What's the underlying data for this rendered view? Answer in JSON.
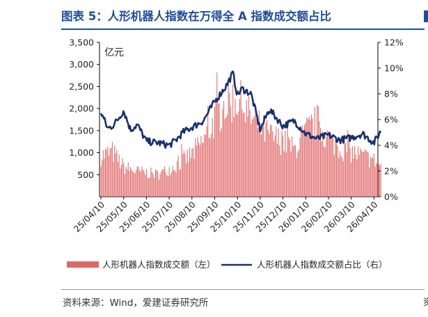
{
  "header": {
    "title": "图表 5：人形机器人指数在万得全 A 指数成交额占比"
  },
  "footer": {
    "source": "资料来源：Wind，爱建证券研究所"
  },
  "chart_data": {
    "type": "bar+line",
    "left_axis": {
      "unit_label": "亿元",
      "ylim": [
        0,
        3500
      ],
      "ticks": [
        "500",
        "1,000",
        "1,500",
        "2,000",
        "2,500",
        "3,000",
        "3,500"
      ]
    },
    "right_axis": {
      "ylim": [
        0,
        12
      ],
      "ticks": [
        "0%",
        "2%",
        "4%",
        "6%",
        "8%",
        "10%",
        "12%"
      ]
    },
    "x_ticks": [
      "25/04/10",
      "25/05/10",
      "25/06/10",
      "25/07/10",
      "25/08/10",
      "25/09/10",
      "25/10/10",
      "25/11/10",
      "25/12/10",
      "26/01/10",
      "26/02/10",
      "26/03/10",
      "26/04/10"
    ],
    "legend": [
      {
        "name": "人形机器人指数成交额（左）",
        "kind": "bar",
        "color": "#e06666"
      },
      {
        "name": "人形机器人指数成交额占比（右）",
        "kind": "line",
        "color": "#1a2f6e"
      }
    ],
    "bar_color": "#e06666",
    "line_color": "#1a2f6e",
    "bars_keypoints": [
      [
        0,
        950
      ],
      [
        0.5,
        1050
      ],
      [
        1,
        700
      ],
      [
        1.5,
        600
      ],
      [
        2,
        560
      ],
      [
        2.5,
        520
      ],
      [
        3,
        650
      ],
      [
        3.5,
        800
      ],
      [
        4,
        1000
      ],
      [
        4.5,
        1300
      ],
      [
        5,
        1800
      ],
      [
        5.5,
        2200
      ],
      [
        6,
        2300
      ],
      [
        6.5,
        1900
      ],
      [
        7,
        1600
      ],
      [
        7.5,
        1400
      ],
      [
        8,
        1300
      ],
      [
        8.5,
        1100
      ],
      [
        9,
        1500
      ],
      [
        9.5,
        1750
      ],
      [
        10,
        1350
      ],
      [
        10.5,
        1150
      ],
      [
        11,
        1050
      ],
      [
        11.5,
        950
      ],
      [
        12,
        850
      ],
      [
        12.3,
        700
      ]
    ],
    "line_keypoints": [
      [
        0,
        6.6
      ],
      [
        0.3,
        5.3
      ],
      [
        0.5,
        5.5
      ],
      [
        0.7,
        5.9
      ],
      [
        1,
        6.7
      ],
      [
        1.3,
        5.2
      ],
      [
        1.6,
        5.6
      ],
      [
        2,
        4.3
      ],
      [
        2.5,
        4.2
      ],
      [
        3,
        4.0
      ],
      [
        3.3,
        4.4
      ],
      [
        3.6,
        5.0
      ],
      [
        4,
        5.4
      ],
      [
        4.5,
        5.9
      ],
      [
        5,
        7.4
      ],
      [
        5.5,
        8.6
      ],
      [
        5.8,
        9.6
      ],
      [
        6,
        7.9
      ],
      [
        6.2,
        8.4
      ],
      [
        6.6,
        8.0
      ],
      [
        7,
        5.2
      ],
      [
        7.4,
        6.8
      ],
      [
        8,
        5.5
      ],
      [
        8.5,
        5.9
      ],
      [
        9,
        4.9
      ],
      [
        9.5,
        4.5
      ],
      [
        10,
        4.8
      ],
      [
        10.5,
        4.4
      ],
      [
        11,
        4.6
      ],
      [
        11.5,
        4.9
      ],
      [
        12,
        4.2
      ],
      [
        12.3,
        5.1
      ]
    ]
  }
}
